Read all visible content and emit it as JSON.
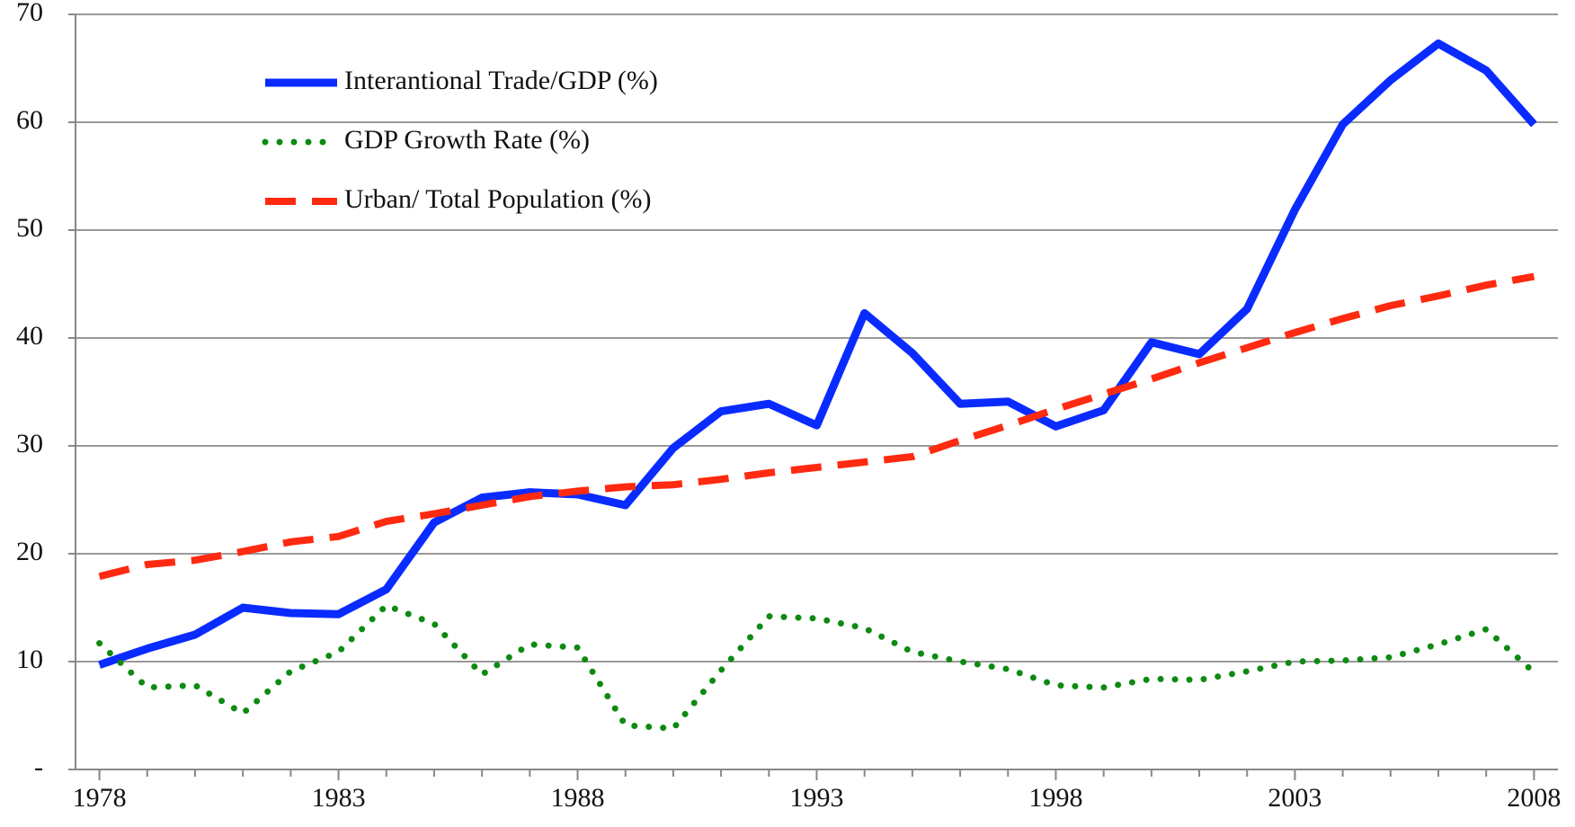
{
  "chart_data": {
    "type": "line",
    "x": [
      1978,
      1979,
      1980,
      1981,
      1982,
      1983,
      1984,
      1985,
      1986,
      1987,
      1988,
      1989,
      1990,
      1991,
      1992,
      1993,
      1994,
      1995,
      1996,
      1997,
      1998,
      1999,
      2000,
      2001,
      2002,
      2003,
      2004,
      2005,
      2006,
      2007,
      2008
    ],
    "xlim": [
      1977.5,
      2008.5
    ],
    "xticks": [
      1978,
      1983,
      1988,
      1993,
      1998,
      2003,
      2008
    ],
    "ylim": [
      0,
      70
    ],
    "yticks": [
      {
        "value": 0,
        "label": "-"
      },
      10,
      20,
      30,
      40,
      50,
      60,
      70
    ],
    "grid": true,
    "legend": "upper-left",
    "series": [
      {
        "name": "Interantional Trade/GDP (%)",
        "color": "#0a2bff",
        "line_style": "solid",
        "values": [
          9.7,
          11.2,
          12.5,
          15.0,
          14.5,
          14.4,
          16.7,
          22.9,
          25.2,
          25.7,
          25.5,
          24.5,
          29.8,
          33.2,
          33.9,
          31.9,
          42.3,
          38.6,
          33.9,
          34.1,
          31.8,
          33.3,
          39.6,
          38.5,
          42.7,
          51.9,
          59.8,
          63.9,
          67.3,
          64.8,
          59.8
        ]
      },
      {
        "name": "GDP Growth Rate (%)",
        "color": "#0e8a12",
        "line_style": "dotted",
        "values": [
          11.7,
          7.6,
          7.8,
          5.2,
          9.1,
          10.9,
          15.2,
          13.5,
          8.8,
          11.6,
          11.3,
          4.1,
          3.8,
          9.2,
          14.2,
          14.0,
          13.1,
          10.9,
          10.0,
          9.3,
          7.8,
          7.6,
          8.4,
          8.3,
          9.1,
          10.0,
          10.1,
          10.4,
          11.6,
          13.0,
          9.0
        ]
      },
      {
        "name": "Urban/ Total Population (%)",
        "color": "#ff2a10",
        "line_style": "dashed",
        "values": [
          17.9,
          19.0,
          19.4,
          20.2,
          21.1,
          21.6,
          23.0,
          23.7,
          24.5,
          25.3,
          25.8,
          26.2,
          26.4,
          26.9,
          27.5,
          28.0,
          28.5,
          29.0,
          30.5,
          31.9,
          33.4,
          34.8,
          36.2,
          37.7,
          39.1,
          40.5,
          41.8,
          43.0,
          43.9,
          44.9,
          45.7
        ]
      }
    ]
  }
}
